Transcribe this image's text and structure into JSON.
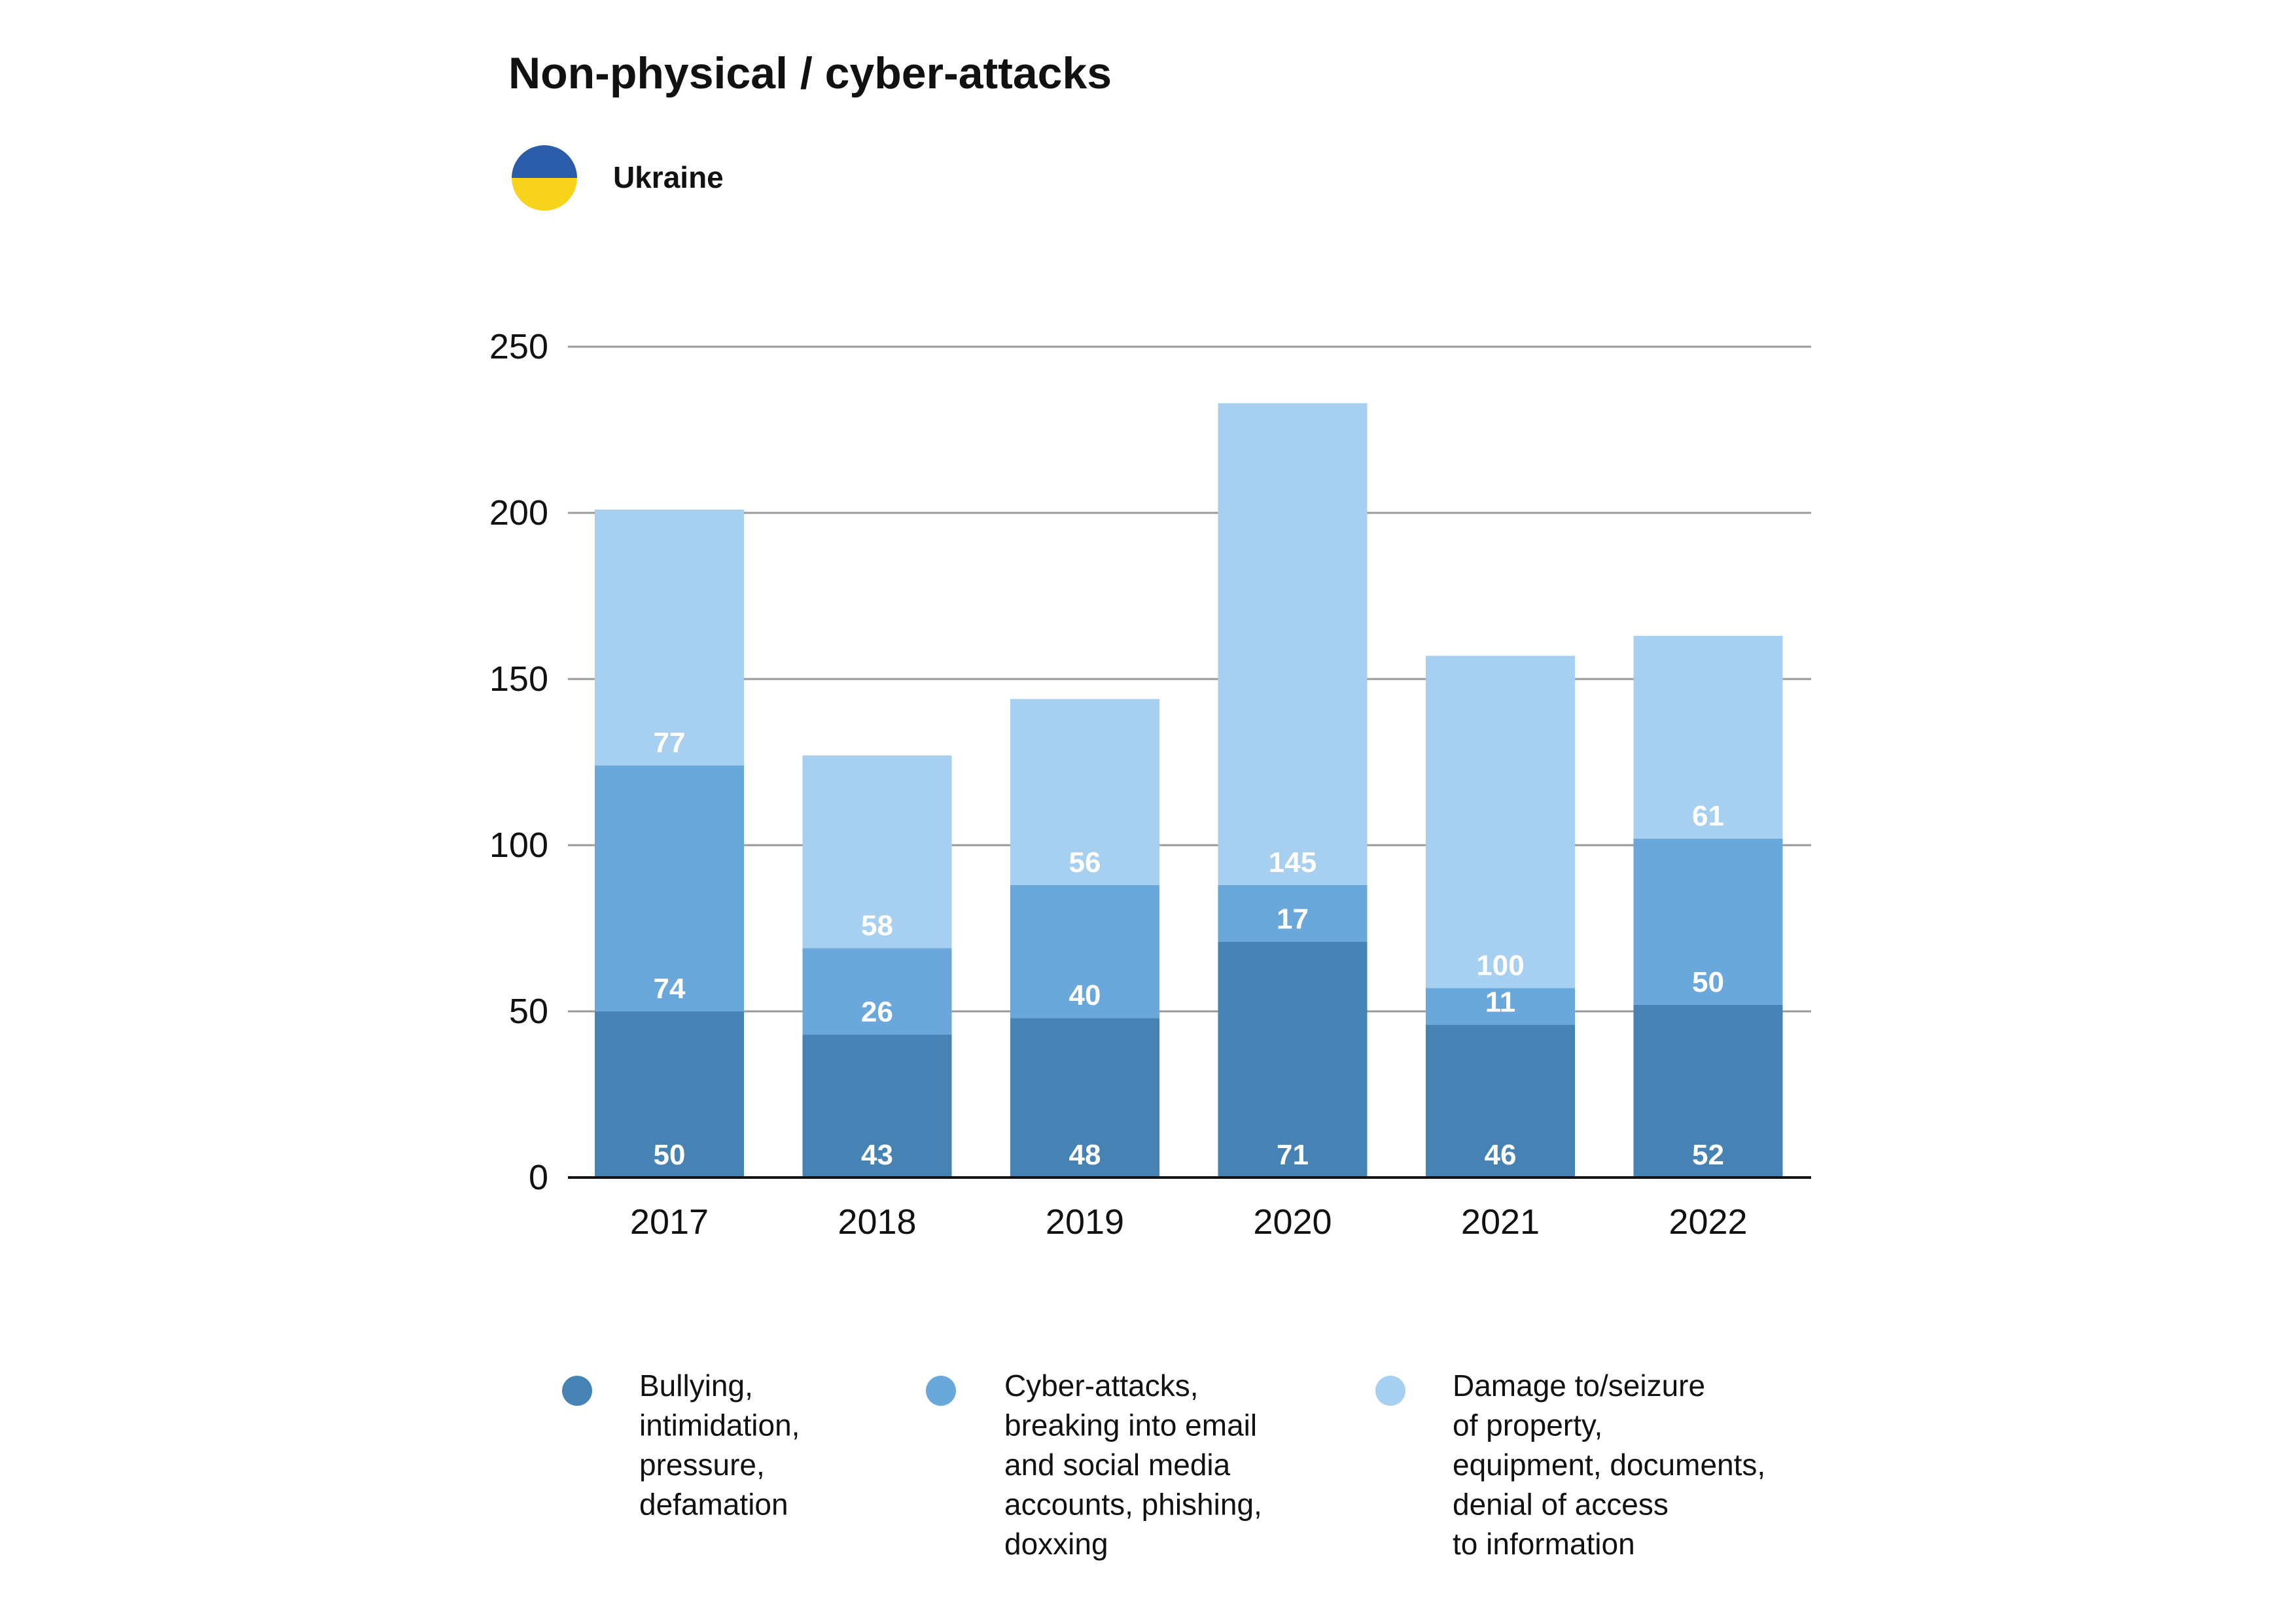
{
  "header": {
    "title": "Non-physical / cyber-attacks",
    "country": "Ukraine",
    "flag_colors": [
      "#2a5caa",
      "#f7d31b"
    ]
  },
  "chart_data": {
    "type": "bar",
    "stacked": true,
    "categories": [
      "2017",
      "2018",
      "2019",
      "2020",
      "2021",
      "2022"
    ],
    "series": [
      {
        "name": "Bullying, intimidation, pressure, defamation",
        "values": [
          50,
          43,
          48,
          71,
          46,
          52
        ],
        "color": "#4782b4"
      },
      {
        "name": "Cyber-attacks, breaking into email and social media accounts, phishing, doxxing",
        "values": [
          74,
          26,
          40,
          17,
          11,
          50
        ],
        "color": "#6aa8db"
      },
      {
        "name": "Damage to/seizure of property, equipment, documents, denial of access to information",
        "values": [
          77,
          58,
          56,
          145,
          100,
          61
        ],
        "color": "#a7cff0"
      }
    ],
    "ylim": [
      0,
      250
    ],
    "yticks": [
      0,
      50,
      100,
      150,
      200,
      250
    ],
    "grid": true,
    "legend_position": "bottom",
    "title": "Non-physical / cyber-attacks",
    "xlabel": "",
    "ylabel": ""
  },
  "legend": {
    "items": [
      {
        "lines": [
          "Bullying,",
          "intimidation,",
          "pressure,",
          "defamation"
        ]
      },
      {
        "lines": [
          "Cyber-attacks,",
          "breaking into email",
          "and social media",
          "accounts, phishing,",
          "doxxing"
        ]
      },
      {
        "lines": [
          "Damage to/seizure",
          "of property,",
          "equipment, documents,",
          "denial of access",
          "to information"
        ]
      }
    ]
  }
}
